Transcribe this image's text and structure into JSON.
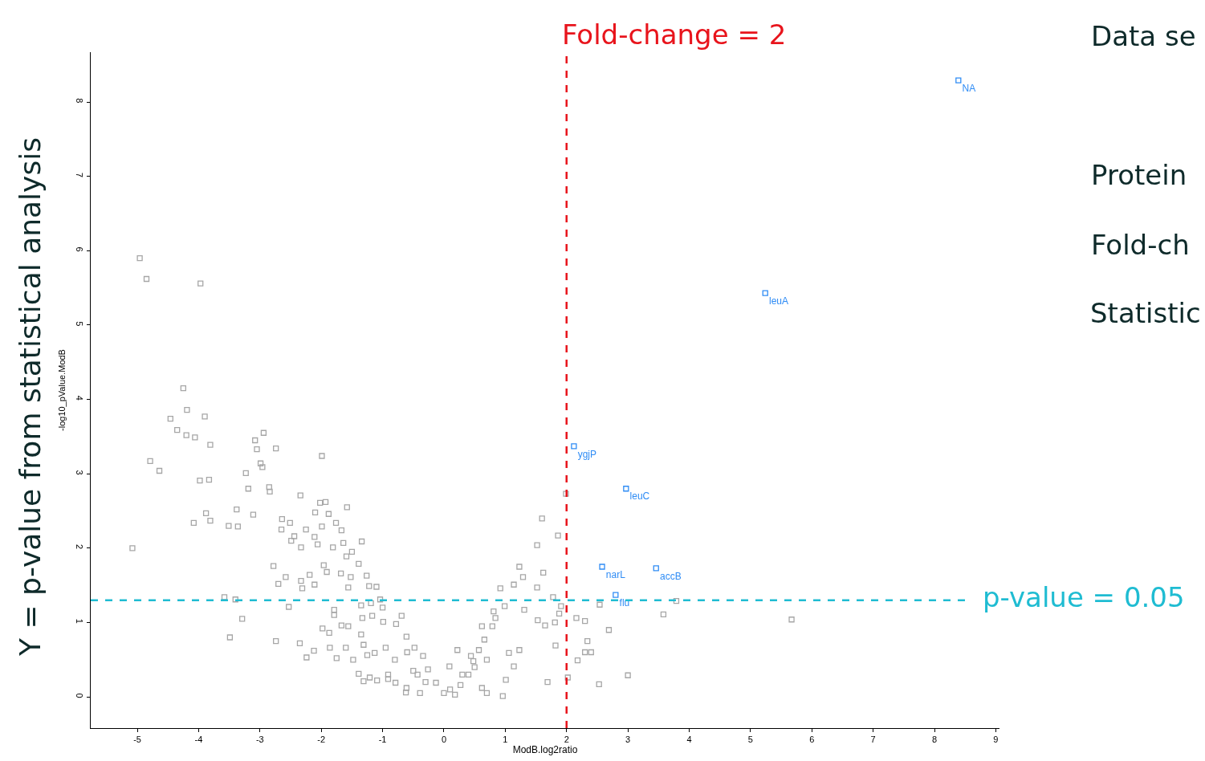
{
  "chart_data": {
    "type": "scatter",
    "xlabel": "ModB.log2ratio",
    "ylabel": "-log10_pValue.ModB",
    "xlim": [
      -5.76,
      9.06
    ],
    "xticks": [
      -5,
      -4,
      -3,
      -2,
      -1,
      0,
      1,
      2,
      3,
      4,
      5,
      6,
      7,
      8,
      9
    ],
    "ylim": [
      -0.42,
      8.67
    ],
    "yticks": [
      0,
      1,
      2,
      3,
      4,
      5,
      6,
      7,
      8
    ],
    "grid": false,
    "marker": "square",
    "series": [
      {
        "color": "#a6a6a6",
        "x": [
          -4.96,
          -4.85,
          -3.97,
          -4.25,
          -4.19,
          -4.46,
          -3.9,
          -4.35,
          -4.2,
          -4.06,
          -3.81,
          -4.79,
          -4.64,
          -3.98,
          -3.83,
          -3.88,
          -4.08,
          -3.81,
          -5.08,
          -3.51,
          -3.36,
          -3.38,
          -3.11,
          -3.23,
          -3.19,
          -3.08,
          -2.94,
          -3.05,
          -2.74,
          -2.99,
          -2.96,
          -2.85,
          -2.84,
          -1.99,
          -2.34,
          -3.58,
          -3.4,
          -3.29,
          -3.49,
          -2.78,
          -2.74,
          -2.53,
          -2.65,
          -2.64,
          -2.51,
          -2.49,
          -2.44,
          -2.7,
          -2.58,
          -2.33,
          -2.25,
          -2.11,
          -2.02,
          -1.93,
          -2.1,
          -1.88,
          -1.99,
          -2.06,
          -1.81,
          -1.58,
          -1.76,
          -1.67,
          -1.64,
          -1.34,
          -1.5,
          -1.59,
          -1.96,
          -2.19,
          -2.33,
          -2.11,
          -2.31,
          -1.91,
          -1.68,
          -1.39,
          -1.52,
          -1.56,
          -1.26,
          -1.35,
          -1.79,
          -1.79,
          -1.98,
          -1.87,
          -2.35,
          -2.12,
          -2.24,
          -1.86,
          -1.75,
          -1.67,
          -1.56,
          -1.6,
          -1.48,
          -1.39,
          -1.31,
          -1.33,
          -1.25,
          -1.21,
          -1.09,
          -1.1,
          -1.19,
          -0.91,
          -0.79,
          -0.62,
          -0.99,
          -0.69,
          -0.78,
          -0.61,
          -0.48,
          -0.34,
          -0.26,
          -0.13,
          0,
          0.18,
          0.27,
          0.4,
          0.48,
          0.57,
          0.66,
          0.79,
          0.84,
          0.99,
          0.92,
          1.14,
          1.23,
          1.29,
          1.52,
          1.6,
          1.86,
          1.99,
          1.62,
          1.52,
          1.78,
          1.91,
          1.88,
          1.81,
          1.65,
          1.53,
          1.82,
          1.69,
          2.02,
          2.16,
          2.3,
          2.54,
          1.31,
          1.23,
          1.06,
          1.14,
          1.01,
          0.96,
          0.7,
          0.62,
          0.44,
          0.62,
          0.81,
          -0.43,
          -0.61,
          -0.39,
          -0.91,
          -1.13,
          -1.31,
          -1.35,
          -0.95,
          -1.17,
          -1.0,
          -1.04,
          -1.22,
          0.22,
          0.09,
          2.69,
          2.34,
          2.3,
          2.4,
          2.18,
          3.58,
          3.79,
          5.67,
          2.53,
          3.0,
          -0.3,
          -0.5,
          0.1,
          0.3,
          -0.8,
          -0.6,
          0.5,
          0.7
        ],
        "values": [
          5.9,
          5.62,
          5.56,
          4.15,
          3.86,
          3.74,
          3.77,
          3.59,
          3.52,
          3.49,
          3.39,
          3.17,
          3.04,
          2.91,
          2.92,
          2.47,
          2.34,
          2.37,
          2.0,
          2.3,
          2.29,
          2.52,
          2.45,
          3.01,
          2.8,
          3.45,
          3.55,
          3.33,
          3.34,
          3.14,
          3.09,
          2.82,
          2.76,
          3.24,
          2.71,
          1.34,
          1.31,
          1.05,
          0.8,
          1.76,
          0.75,
          1.21,
          2.25,
          2.39,
          2.34,
          2.1,
          2.16,
          1.52,
          1.61,
          2.01,
          2.25,
          2.15,
          2.61,
          2.62,
          2.48,
          2.46,
          2.29,
          2.05,
          2.01,
          2.55,
          2.34,
          2.24,
          2.07,
          2.09,
          1.95,
          1.89,
          1.77,
          1.64,
          1.56,
          1.51,
          1.46,
          1.68,
          1.66,
          1.79,
          1.61,
          1.47,
          1.63,
          1.23,
          1.17,
          1.1,
          0.92,
          0.86,
          0.72,
          0.62,
          0.53,
          0.66,
          0.52,
          0.96,
          0.95,
          0.66,
          0.5,
          0.31,
          0.21,
          1.06,
          0.56,
          0.26,
          0.22,
          1.48,
          1.26,
          0.24,
          0.19,
          0.06,
          1.01,
          1.09,
          0.98,
          0.81,
          0.66,
          0.55,
          0.37,
          0.19,
          0.05,
          0.03,
          0.16,
          0.3,
          0.48,
          0.63,
          0.77,
          0.95,
          1.06,
          1.22,
          1.46,
          1.51,
          1.75,
          1.61,
          2.04,
          2.4,
          2.17,
          2.73,
          1.67,
          1.47,
          1.34,
          1.22,
          1.12,
          1.0,
          0.96,
          1.03,
          0.69,
          0.2,
          0.26,
          1.06,
          1.02,
          1.24,
          1.17,
          0.63,
          0.59,
          0.41,
          0.23,
          0.01,
          0.05,
          0.12,
          0.55,
          0.95,
          1.15,
          0.3,
          0.12,
          0.05,
          0.3,
          0.59,
          0.7,
          0.84,
          0.66,
          1.09,
          1.2,
          1.31,
          1.49,
          0.63,
          0.41,
          0.9,
          0.75,
          0.6,
          0.6,
          0.49,
          1.11,
          1.29,
          1.04,
          0.17,
          0.29,
          0.2,
          0.35,
          0.1,
          0.3,
          0.5,
          0.6,
          0.4,
          0.5
        ]
      },
      {
        "color": "#2f8cf5",
        "x": [
          8.39,
          5.24,
          2.12,
          2.97,
          2.58,
          3.46,
          2.8
        ],
        "values": [
          8.29,
          5.43,
          3.37,
          2.8,
          1.75,
          1.73,
          1.37
        ],
        "value_labels": [
          "NA",
          "leuA",
          "ygjP",
          "leuC",
          "narL",
          "accB",
          "flu"
        ]
      }
    ],
    "ref_lines": [
      {
        "axis": "x",
        "value": 2,
        "label": "Fold-change = 2",
        "color": "#e8141c",
        "line_style": "dashed"
      },
      {
        "axis": "y",
        "value": 1.3,
        "color": "#1fbcd2",
        "line_style": "dashed"
      }
    ],
    "annotations": [
      "Y = p-value from statistical analysis",
      "Data se",
      "Protein",
      "Fold-ch",
      "Statistic",
      "p-value = 0.05"
    ]
  }
}
